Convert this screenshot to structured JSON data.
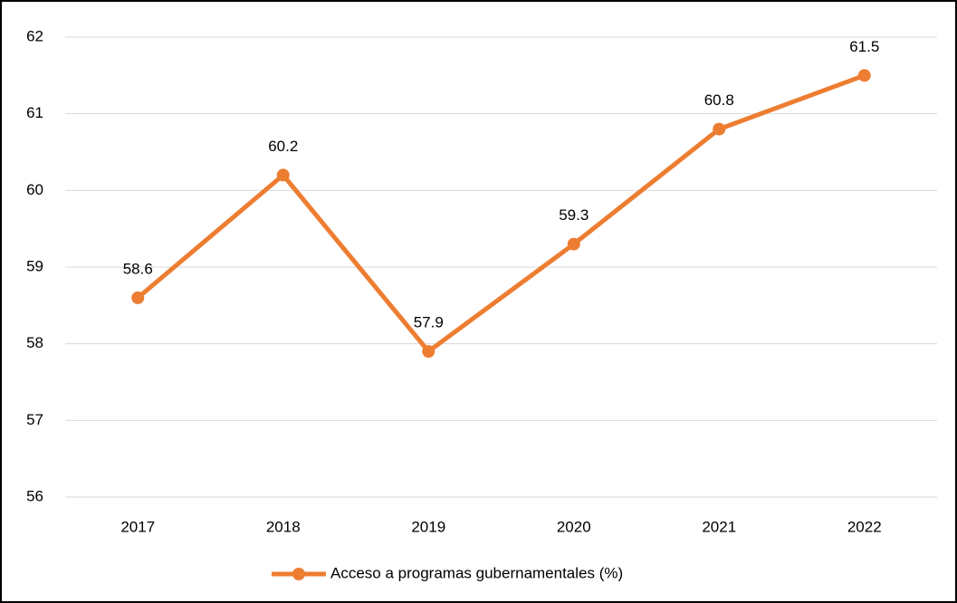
{
  "chart_data": {
    "type": "line",
    "categories": [
      "2017",
      "2018",
      "2019",
      "2020",
      "2021",
      "2022"
    ],
    "series": [
      {
        "name": "Acceso a programas gubernamentales (%)",
        "color": "#ed7d31",
        "values": [
          58.6,
          60.2,
          57.9,
          59.3,
          60.8,
          61.5
        ]
      }
    ],
    "ylim": [
      56,
      62
    ],
    "yticks": [
      56,
      57,
      58,
      59,
      60,
      61,
      62
    ],
    "grid": true,
    "legend": "bottom"
  }
}
